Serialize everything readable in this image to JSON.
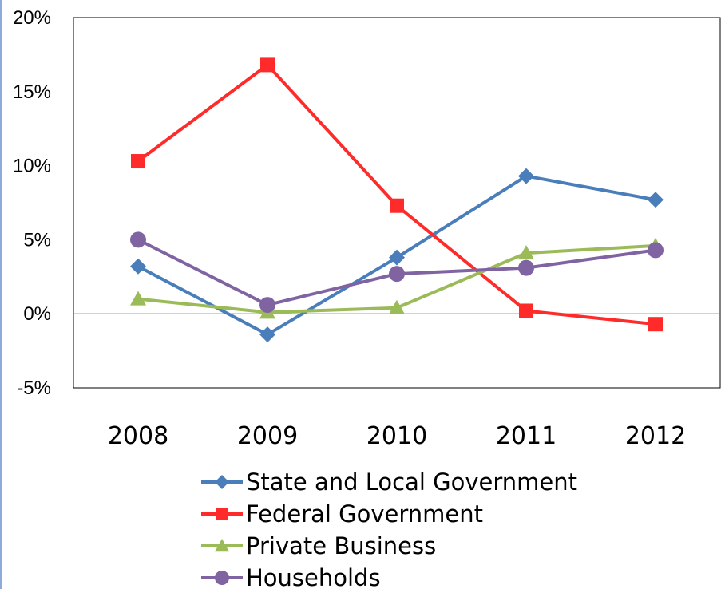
{
  "chart_data": {
    "type": "line",
    "title": "",
    "xlabel": "",
    "ylabel": "",
    "categories": [
      "2008",
      "2009",
      "2010",
      "2011",
      "2012"
    ],
    "ylim": [
      -5,
      20
    ],
    "yticks": [
      20,
      15,
      10,
      5,
      0,
      -5
    ],
    "ytick_labels": [
      "20%",
      "15%",
      "10%",
      "5%",
      "0%",
      "-5%"
    ],
    "grid": false,
    "legend_position": "bottom",
    "series": [
      {
        "name": "State and Local Government",
        "color": "#4a7ebb",
        "marker": "diamond",
        "values": [
          3.2,
          -1.4,
          3.8,
          9.3,
          7.7
        ]
      },
      {
        "name": "Federal Government",
        "color": "#ff2a2a",
        "marker": "square",
        "values": [
          10.3,
          16.8,
          7.3,
          0.2,
          -0.7
        ]
      },
      {
        "name": "Private Business",
        "color": "#9bbb59",
        "marker": "triangle",
        "values": [
          1.0,
          0.1,
          0.4,
          4.1,
          4.6
        ]
      },
      {
        "name": "Households",
        "color": "#8064a2",
        "marker": "circle",
        "values": [
          5.0,
          0.6,
          2.7,
          3.1,
          4.3
        ]
      }
    ]
  }
}
